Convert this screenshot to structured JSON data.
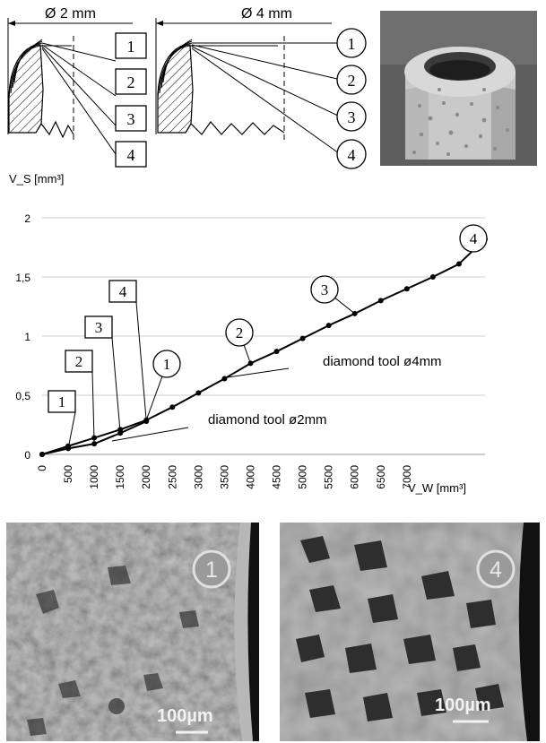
{
  "top_diagrams": {
    "left": {
      "dimension_label": "Ø 2 mm",
      "markers": [
        "1",
        "2",
        "3",
        "4"
      ]
    },
    "right": {
      "dimension_label": "Ø 4 mm",
      "markers": [
        "1",
        "2",
        "3",
        "4"
      ]
    }
  },
  "chart_data": {
    "type": "line",
    "title": "",
    "ylabel": "V_S [mm³]",
    "xlabel": "V_W [mm³]",
    "ylim": [
      0,
      2
    ],
    "xlim": [
      0,
      8000
    ],
    "y_ticks": [
      "0",
      "0,5",
      "1",
      "1,5",
      "2"
    ],
    "x_ticks": [
      "0",
      "500",
      "1000",
      "1500",
      "2000",
      "2500",
      "3000",
      "3500",
      "4000",
      "4500",
      "5000",
      "5500",
      "6000",
      "6500",
      "7000"
    ],
    "grid": "horizontal",
    "series": [
      {
        "name": "diamond tool ø4mm",
        "x": [
          0,
          500,
          1000,
          1500,
          2000,
          2500,
          3000,
          3500,
          4000,
          4500,
          5000,
          5500,
          6000,
          6500,
          7000,
          7500,
          8000,
          8500
        ],
        "y": [
          0,
          0.07,
          0.14,
          0.21,
          0.29,
          0.4,
          0.52,
          0.64,
          0.77,
          0.87,
          0.98,
          1.09,
          1.19,
          1.3,
          1.4,
          1.5,
          1.61,
          1.82
        ]
      },
      {
        "name": "diamond tool ø2mm",
        "x": [
          0,
          500,
          1000,
          1500,
          2000
        ],
        "y": [
          0,
          0.05,
          0.09,
          0.18,
          0.28
        ]
      }
    ],
    "annotations": [
      {
        "label": "1",
        "shape": "square",
        "series": "diamond tool ø2mm",
        "x": 500,
        "y": 0.05
      },
      {
        "label": "2",
        "shape": "square",
        "series": "diamond tool ø2mm",
        "x": 1000,
        "y": 0.09
      },
      {
        "label": "3",
        "shape": "square",
        "series": "diamond tool ø2mm",
        "x": 1500,
        "y": 0.18
      },
      {
        "label": "4",
        "shape": "square",
        "series": "diamond tool ø2mm",
        "x": 2000,
        "y": 0.28
      },
      {
        "label": "1",
        "shape": "circle",
        "series": "diamond tool ø4mm",
        "x": 2000,
        "y": 0.29
      },
      {
        "label": "2",
        "shape": "circle",
        "series": "diamond tool ø4mm",
        "x": 4000,
        "y": 0.77
      },
      {
        "label": "3",
        "shape": "circle",
        "series": "diamond tool ø4mm",
        "x": 6000,
        "y": 1.19
      },
      {
        "label": "4",
        "shape": "circle",
        "series": "diamond tool ø4mm",
        "x": 8500,
        "y": 1.82
      }
    ]
  },
  "micrographs": [
    {
      "marker": "1",
      "scale_bar": "100µm"
    },
    {
      "marker": "4",
      "scale_bar": "100µm"
    }
  ]
}
